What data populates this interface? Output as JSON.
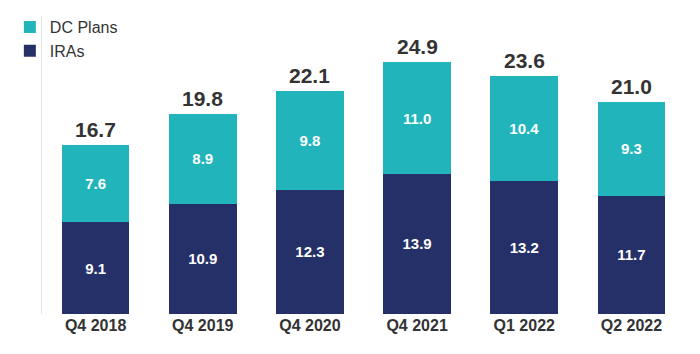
{
  "chart_data": {
    "type": "bar",
    "stacked": true,
    "data_labels": true,
    "tick_labels": "x",
    "grid": false,
    "legend": "top-left",
    "categories": [
      "Q4 2018",
      "Q4 2019",
      "Q4 2020",
      "Q4 2021",
      "Q1 2022",
      "Q2 2022"
    ],
    "series": [
      {
        "name": "IRAs",
        "color": "#253068",
        "values": [
          9.1,
          10.9,
          12.3,
          13.9,
          13.2,
          11.7
        ]
      },
      {
        "name": "DC Plans",
        "color": "#21b5bb",
        "values": [
          7.6,
          8.9,
          9.8,
          11.0,
          10.4,
          9.3
        ],
        "value_labels": [
          "7.6",
          "8.9",
          "9.8",
          "11.0",
          "10.4",
          "9.3"
        ]
      }
    ],
    "totals": [
      16.7,
      19.8,
      22.1,
      24.9,
      23.6,
      21.0
    ],
    "total_labels": [
      "16.7",
      "19.8",
      "22.1",
      "24.9",
      "23.6",
      "21.0"
    ],
    "ylim": [
      0,
      29.5
    ]
  }
}
